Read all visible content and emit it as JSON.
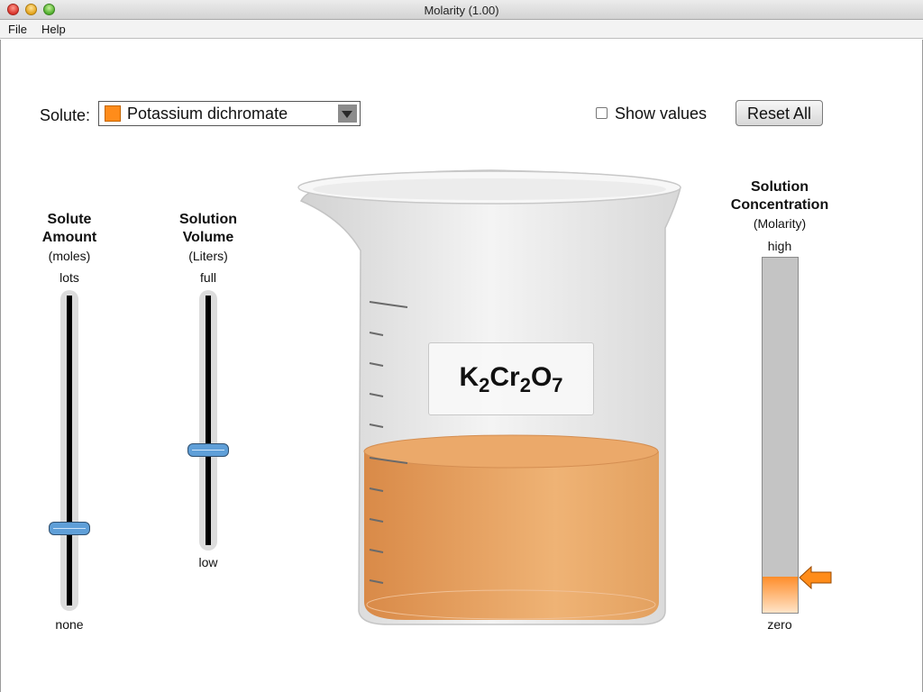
{
  "window": {
    "title": "Molarity (1.00)"
  },
  "menu": {
    "items": [
      "File",
      "Help"
    ]
  },
  "solute": {
    "label": "Solute:",
    "selected": "Potassium dichromate",
    "color": "#ff8c1a"
  },
  "show_values": {
    "label": "Show values",
    "checked": false
  },
  "reset": {
    "label": "Reset All"
  },
  "solute_amount": {
    "title_line1": "Solute",
    "title_line2": "Amount",
    "units": "(moles)",
    "max_label": "lots",
    "min_label": "none",
    "level": 0.25
  },
  "solution_volume": {
    "title_line1": "Solution",
    "title_line2": "Volume",
    "units": "(Liters)",
    "max_label": "full",
    "min_label": "low",
    "level": 0.38
  },
  "beaker": {
    "formula": [
      {
        "t": "K"
      },
      {
        "t": "2",
        "sub": true
      },
      {
        "t": "Cr"
      },
      {
        "t": "2",
        "sub": true
      },
      {
        "t": "O"
      },
      {
        "t": "7",
        "sub": true
      }
    ],
    "solution_color": "#e89a56"
  },
  "concentration": {
    "title_line1": "Solution",
    "title_line2": "Concentration",
    "units": "(Molarity)",
    "max_label": "high",
    "min_label": "zero",
    "level": 0.1,
    "arrow_color": "#ff8c1a"
  }
}
